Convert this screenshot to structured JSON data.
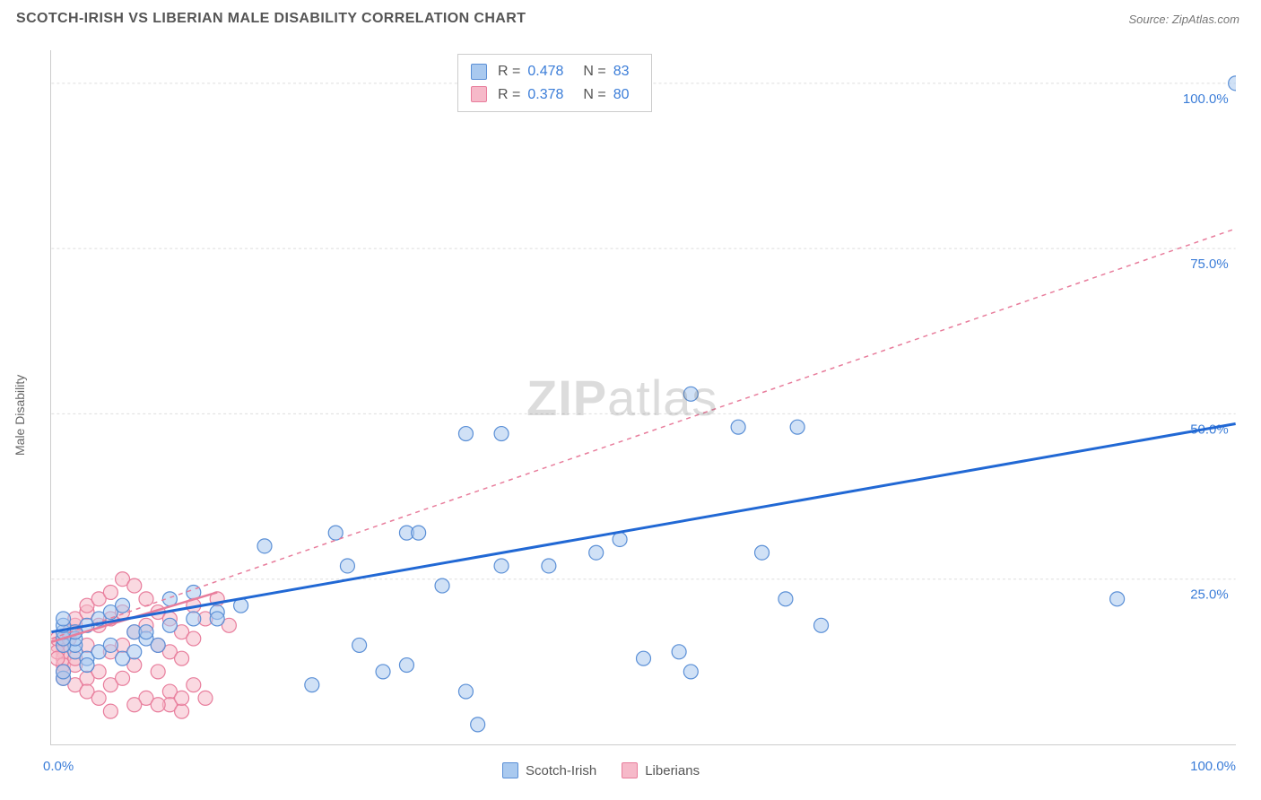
{
  "header": {
    "title": "SCOTCH-IRISH VS LIBERIAN MALE DISABILITY CORRELATION CHART",
    "source_label": "Source: ",
    "source_value": "ZipAtlas.com"
  },
  "chart": {
    "type": "scatter",
    "ylabel": "Male Disability",
    "xlim": [
      0,
      100
    ],
    "ylim": [
      0,
      105
    ],
    "ytick_values": [
      25,
      50,
      75,
      100
    ],
    "ytick_labels": [
      "25.0%",
      "50.0%",
      "75.0%",
      "100.0%"
    ],
    "xtick_positions": [
      0,
      10,
      20,
      30,
      40,
      50,
      60,
      70,
      80,
      90,
      100
    ],
    "x_origin_label": "0.0%",
    "x_max_label": "100.0%",
    "background_color": "#ffffff",
    "grid_color": "#dddddd",
    "axis_color": "#cccccc",
    "value_text_color": "#3b7dd8",
    "marker_radius": 8,
    "marker_opacity": 0.55,
    "watermark_text_bold": "ZIP",
    "watermark_text": "atlas",
    "series": [
      {
        "name": "Scotch-Irish",
        "color_fill": "#a9c9ef",
        "color_stroke": "#5a8fd6",
        "trend_color": "#2168d4",
        "trend_dash": "none",
        "trend_y0": 17.0,
        "trend_y100": 48.5,
        "R": "0.478",
        "N": "83",
        "points": [
          [
            54,
            53
          ],
          [
            35,
            47
          ],
          [
            38,
            47
          ],
          [
            58,
            48
          ],
          [
            63,
            48
          ],
          [
            24,
            32
          ],
          [
            30,
            32
          ],
          [
            31,
            32
          ],
          [
            48,
            31
          ],
          [
            46,
            29
          ],
          [
            60,
            29
          ],
          [
            18,
            30
          ],
          [
            25,
            27
          ],
          [
            38,
            27
          ],
          [
            42,
            27
          ],
          [
            33,
            24
          ],
          [
            62,
            22
          ],
          [
            90,
            22
          ],
          [
            50,
            13
          ],
          [
            53,
            14
          ],
          [
            54,
            11
          ],
          [
            65,
            18
          ],
          [
            36,
            3
          ],
          [
            30,
            12
          ],
          [
            28,
            11
          ],
          [
            22,
            9
          ],
          [
            10,
            18
          ],
          [
            12,
            19
          ],
          [
            14,
            20
          ],
          [
            16,
            21
          ],
          [
            7,
            17
          ],
          [
            8,
            16
          ],
          [
            9,
            15
          ],
          [
            3,
            18
          ],
          [
            4,
            19
          ],
          [
            5,
            20
          ],
          [
            6,
            21
          ],
          [
            2,
            14
          ],
          [
            2,
            15
          ],
          [
            2,
            16
          ],
          [
            2,
            17
          ],
          [
            3,
            13
          ],
          [
            3,
            12
          ],
          [
            1,
            10
          ],
          [
            1,
            11
          ],
          [
            1,
            15
          ],
          [
            1,
            16
          ],
          [
            1,
            17
          ],
          [
            1,
            18
          ],
          [
            1,
            19
          ],
          [
            4,
            14
          ],
          [
            5,
            15
          ],
          [
            6,
            13
          ],
          [
            7,
            14
          ],
          [
            8,
            17
          ],
          [
            10,
            22
          ],
          [
            12,
            23
          ],
          [
            14,
            19
          ],
          [
            35,
            8
          ],
          [
            26,
            15
          ],
          [
            100,
            100
          ]
        ]
      },
      {
        "name": "Liberians",
        "color_fill": "#f6b9c9",
        "color_stroke": "#e87d9c",
        "trend_color": "#e87d9c",
        "trend_dash": "5,5",
        "trend_y0": 16.0,
        "trend_y100": 78.0,
        "R": "0.378",
        "N": "80",
        "points": [
          [
            1,
            14
          ],
          [
            1,
            15
          ],
          [
            1,
            16
          ],
          [
            1,
            13
          ],
          [
            1,
            12
          ],
          [
            1,
            11
          ],
          [
            1,
            10
          ],
          [
            2,
            17
          ],
          [
            2,
            18
          ],
          [
            2,
            19
          ],
          [
            2,
            12
          ],
          [
            2,
            13
          ],
          [
            2,
            9
          ],
          [
            3,
            20
          ],
          [
            3,
            21
          ],
          [
            3,
            15
          ],
          [
            3,
            10
          ],
          [
            3,
            8
          ],
          [
            4,
            22
          ],
          [
            4,
            18
          ],
          [
            4,
            11
          ],
          [
            4,
            7
          ],
          [
            5,
            23
          ],
          [
            5,
            19
          ],
          [
            5,
            14
          ],
          [
            5,
            9
          ],
          [
            6,
            25
          ],
          [
            6,
            20
          ],
          [
            6,
            15
          ],
          [
            6,
            10
          ],
          [
            7,
            24
          ],
          [
            7,
            17
          ],
          [
            7,
            12
          ],
          [
            8,
            22
          ],
          [
            8,
            18
          ],
          [
            8,
            7
          ],
          [
            9,
            20
          ],
          [
            9,
            15
          ],
          [
            9,
            11
          ],
          [
            10,
            19
          ],
          [
            10,
            14
          ],
          [
            10,
            8
          ],
          [
            10,
            6
          ],
          [
            11,
            17
          ],
          [
            11,
            13
          ],
          [
            11,
            5
          ],
          [
            12,
            21
          ],
          [
            12,
            16
          ],
          [
            12,
            9
          ],
          [
            13,
            19
          ],
          [
            13,
            7
          ],
          [
            14,
            22
          ],
          [
            15,
            18
          ],
          [
            0.5,
            15
          ],
          [
            0.5,
            14
          ],
          [
            0.5,
            13
          ],
          [
            0.5,
            16
          ],
          [
            1.5,
            16
          ],
          [
            1.5,
            17
          ],
          [
            5,
            5
          ],
          [
            7,
            6
          ],
          [
            9,
            6
          ],
          [
            11,
            7
          ]
        ]
      }
    ]
  },
  "legend_top": {
    "R_label": "R =",
    "N_label": "N ="
  },
  "legend_bottom": {
    "items": [
      "Scotch-Irish",
      "Liberians"
    ]
  }
}
